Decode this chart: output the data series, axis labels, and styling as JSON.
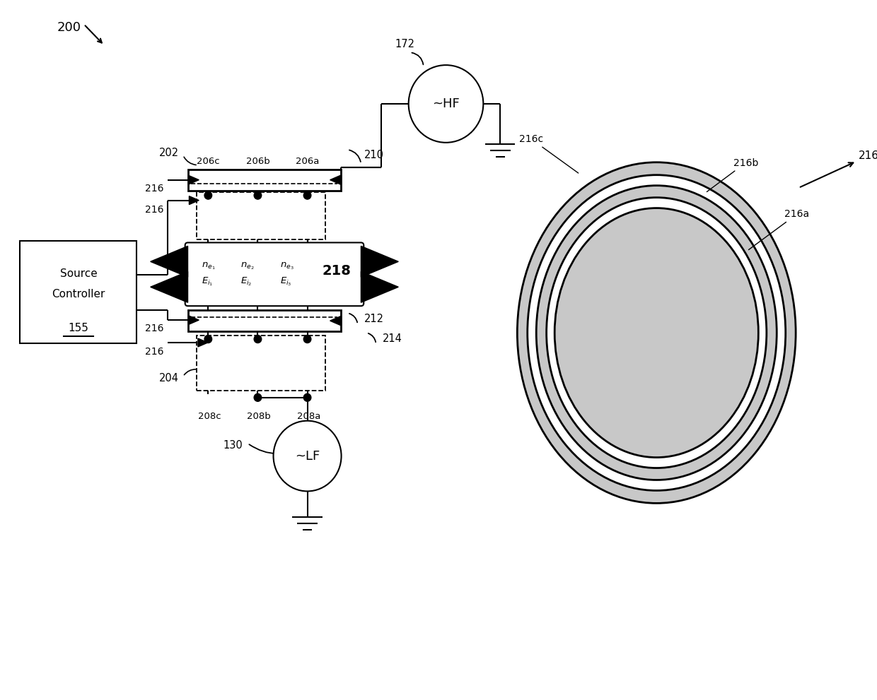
{
  "bg_color": "#ffffff",
  "line_color": "#000000",
  "gray_fill": "#c8c8c8",
  "fig_width": 12.4,
  "fig_height": 9.91,
  "labels": {
    "main_ref": "200",
    "hf_ref": "172",
    "hf_label": "~HF",
    "lf_ref": "130",
    "lf_label": "~LF",
    "src_ctrl_line1": "Source",
    "src_ctrl_line2": "Controller",
    "src_ctrl_ref": "155",
    "top_switch_box_ref": "202",
    "bot_switch_box_ref": "204",
    "sw_top_a": "206a",
    "sw_top_b": "206b",
    "sw_top_c": "206c",
    "sw_bot_a": "208a",
    "sw_bot_b": "208b",
    "sw_bot_c": "208c",
    "bus_top_ref": "210",
    "bus_bot_ref": "212",
    "bus_bot_ref2": "214",
    "ctrl_ref": "216",
    "data_box_ref": "218",
    "data_line1": "n",
    "data_line2": "E",
    "electrode_ref": "216",
    "electrode_a": "216a",
    "electrode_b": "216b",
    "electrode_c": "216c"
  }
}
